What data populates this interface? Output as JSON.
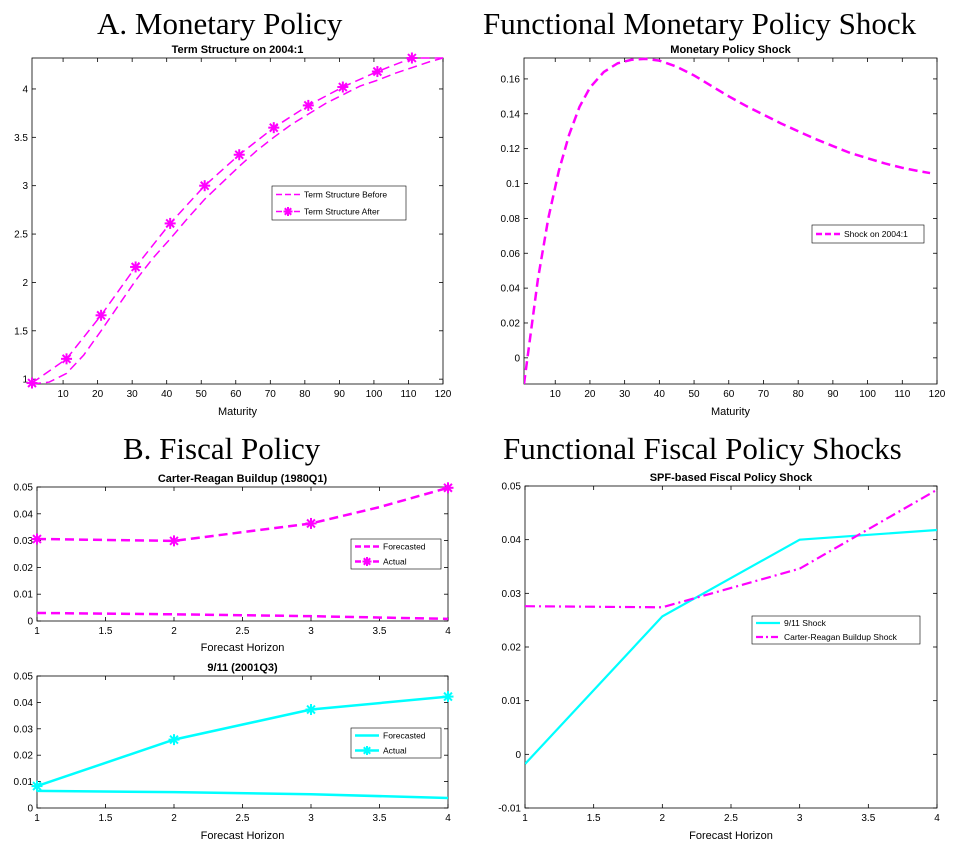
{
  "headings": {
    "a": "A. Monetary Policy",
    "b": "Functional Monetary Policy Shock",
    "c": "B. Fiscal Policy",
    "d": "Functional Fiscal Policy Shocks"
  },
  "colors": {
    "magenta": "#FF00FF",
    "cyan": "#00FFFF",
    "axis": "#000000"
  },
  "chart_data": [
    {
      "type": "line",
      "title": "Term Structure on 2004:1",
      "xlabel": "Maturity",
      "ylabel": "",
      "xlim": [
        1,
        120
      ],
      "ylim": [
        0.95,
        4.32
      ],
      "xticks": [
        10,
        20,
        30,
        40,
        50,
        60,
        70,
        80,
        90,
        100,
        110,
        120
      ],
      "yticks": [
        1,
        1.5,
        2,
        2.5,
        3,
        3.5,
        4
      ],
      "legend": "center-right",
      "series": [
        {
          "name": "Term Structure Before",
          "style": "dashed",
          "marker": "none",
          "color": "#FF00FF",
          "x": [
            1,
            6,
            11,
            16,
            21,
            26,
            31,
            36,
            41,
            46,
            51,
            56,
            61,
            66,
            71,
            76,
            81,
            86,
            91,
            96,
            101,
            106,
            111,
            116,
            120
          ],
          "y": [
            0.95,
            0.97,
            1.06,
            1.25,
            1.5,
            1.76,
            2.02,
            2.25,
            2.45,
            2.66,
            2.86,
            3.03,
            3.2,
            3.36,
            3.5,
            3.63,
            3.74,
            3.85,
            3.94,
            4.03,
            4.09,
            4.16,
            4.22,
            4.28,
            4.32
          ]
        },
        {
          "name": "Term Structure After",
          "style": "dashed",
          "marker": "asterisk",
          "color": "#FF00FF",
          "x": [
            1,
            11,
            21,
            31,
            41,
            51,
            61,
            71,
            81,
            91,
            101,
            111,
            120
          ],
          "y": [
            0.96,
            1.21,
            1.66,
            2.16,
            2.61,
            3.0,
            3.32,
            3.6,
            3.83,
            4.02,
            4.18,
            4.32,
            4.32
          ],
          "marker_x": [
            1,
            11,
            21,
            31,
            41,
            51,
            61,
            71,
            81,
            91,
            101,
            111
          ]
        }
      ]
    },
    {
      "type": "line",
      "title": "Monetary Policy Shock",
      "xlabel": "Maturity",
      "ylabel": "",
      "xlim": [
        1,
        120
      ],
      "ylim": [
        -0.015,
        0.172
      ],
      "xticks": [
        10,
        20,
        30,
        40,
        50,
        60,
        70,
        80,
        90,
        100,
        110,
        120
      ],
      "yticks": [
        0,
        0.02,
        0.04,
        0.06,
        0.08,
        0.1,
        0.12,
        0.14,
        0.16
      ],
      "legend": "center-right",
      "series": [
        {
          "name": "Shock on 2004:1",
          "style": "dashed",
          "marker": "none",
          "color": "#FF00FF",
          "x": [
            1,
            3,
            5,
            8,
            11,
            14,
            17,
            20,
            24,
            28,
            32,
            36,
            40,
            45,
            50,
            55,
            60,
            65,
            70,
            75,
            80,
            85,
            90,
            95,
            100,
            105,
            110,
            115,
            118
          ],
          "y": [
            -0.015,
            0.015,
            0.045,
            0.08,
            0.107,
            0.128,
            0.144,
            0.155,
            0.164,
            0.169,
            0.171,
            0.1715,
            0.1705,
            0.167,
            0.162,
            0.156,
            0.15,
            0.1445,
            0.1395,
            0.1345,
            0.13,
            0.1255,
            0.1215,
            0.1175,
            0.1145,
            0.1115,
            0.109,
            0.107,
            0.106
          ]
        }
      ]
    },
    {
      "type": "line",
      "title": "Carter-Reagan Buildup (1980Q1)",
      "xlabel": "Forecast Horizon",
      "ylabel": "",
      "xlim": [
        1,
        4
      ],
      "ylim": [
        0,
        0.05
      ],
      "xticks": [
        1,
        1.5,
        2,
        2.5,
        3,
        3.5,
        4
      ],
      "yticks": [
        0,
        0.01,
        0.02,
        0.03,
        0.04,
        0.05
      ],
      "legend": "center-right",
      "series": [
        {
          "name": "Forecasted",
          "style": "dashed",
          "marker": "none",
          "color": "#FF00FF",
          "x": [
            1,
            2,
            3,
            4
          ],
          "y": [
            0.003,
            0.0025,
            0.0018,
            0.0008
          ]
        },
        {
          "name": "Actual",
          "style": "dashed",
          "marker": "asterisk",
          "color": "#FF00FF",
          "x": [
            1,
            2,
            3,
            3.5,
            4
          ],
          "y": [
            0.0306,
            0.0299,
            0.0364,
            0.0425,
            0.0497
          ],
          "marker_x": [
            1,
            2,
            3,
            4
          ]
        }
      ]
    },
    {
      "type": "line",
      "title": "9/11 (2001Q3)",
      "xlabel": "Forecast Horizon",
      "ylabel": "",
      "xlim": [
        1,
        4
      ],
      "ylim": [
        0,
        0.05
      ],
      "xticks": [
        1,
        1.5,
        2,
        2.5,
        3,
        3.5,
        4
      ],
      "yticks": [
        0,
        0.01,
        0.02,
        0.03,
        0.04,
        0.05
      ],
      "legend": "center-right",
      "series": [
        {
          "name": "Forecasted",
          "style": "solid",
          "marker": "none",
          "color": "#00FFFF",
          "x": [
            1,
            2,
            3,
            4
          ],
          "y": [
            0.0065,
            0.006,
            0.0052,
            0.0038
          ]
        },
        {
          "name": "Actual",
          "style": "solid",
          "marker": "asterisk",
          "color": "#00FFFF",
          "x": [
            1,
            2,
            3,
            4
          ],
          "y": [
            0.0083,
            0.0259,
            0.0373,
            0.0422
          ],
          "marker_x": [
            1,
            2,
            3,
            4
          ]
        }
      ]
    },
    {
      "type": "line",
      "title": "SPF-based Fiscal Policy Shock",
      "xlabel": "Forecast Horizon",
      "ylabel": "",
      "xlim": [
        1,
        4
      ],
      "ylim": [
        -0.01,
        0.05
      ],
      "xticks": [
        1,
        1.5,
        2,
        2.5,
        3,
        3.5,
        4
      ],
      "yticks": [
        -0.01,
        0,
        0.01,
        0.02,
        0.03,
        0.04,
        0.05
      ],
      "legend": "center-right",
      "series": [
        {
          "name": "9/11 Shock",
          "style": "solid",
          "marker": "none",
          "color": "#00FFFF",
          "x": [
            1,
            2,
            3,
            4
          ],
          "y": [
            -0.0018,
            0.0257,
            0.04,
            0.0418
          ]
        },
        {
          "name": "Carter-Reagan Buildup Shock",
          "style": "dashdot",
          "marker": "none",
          "color": "#FF00FF",
          "x": [
            1,
            2,
            3,
            4
          ],
          "y": [
            0.0276,
            0.0274,
            0.0346,
            0.0493
          ]
        }
      ]
    }
  ]
}
